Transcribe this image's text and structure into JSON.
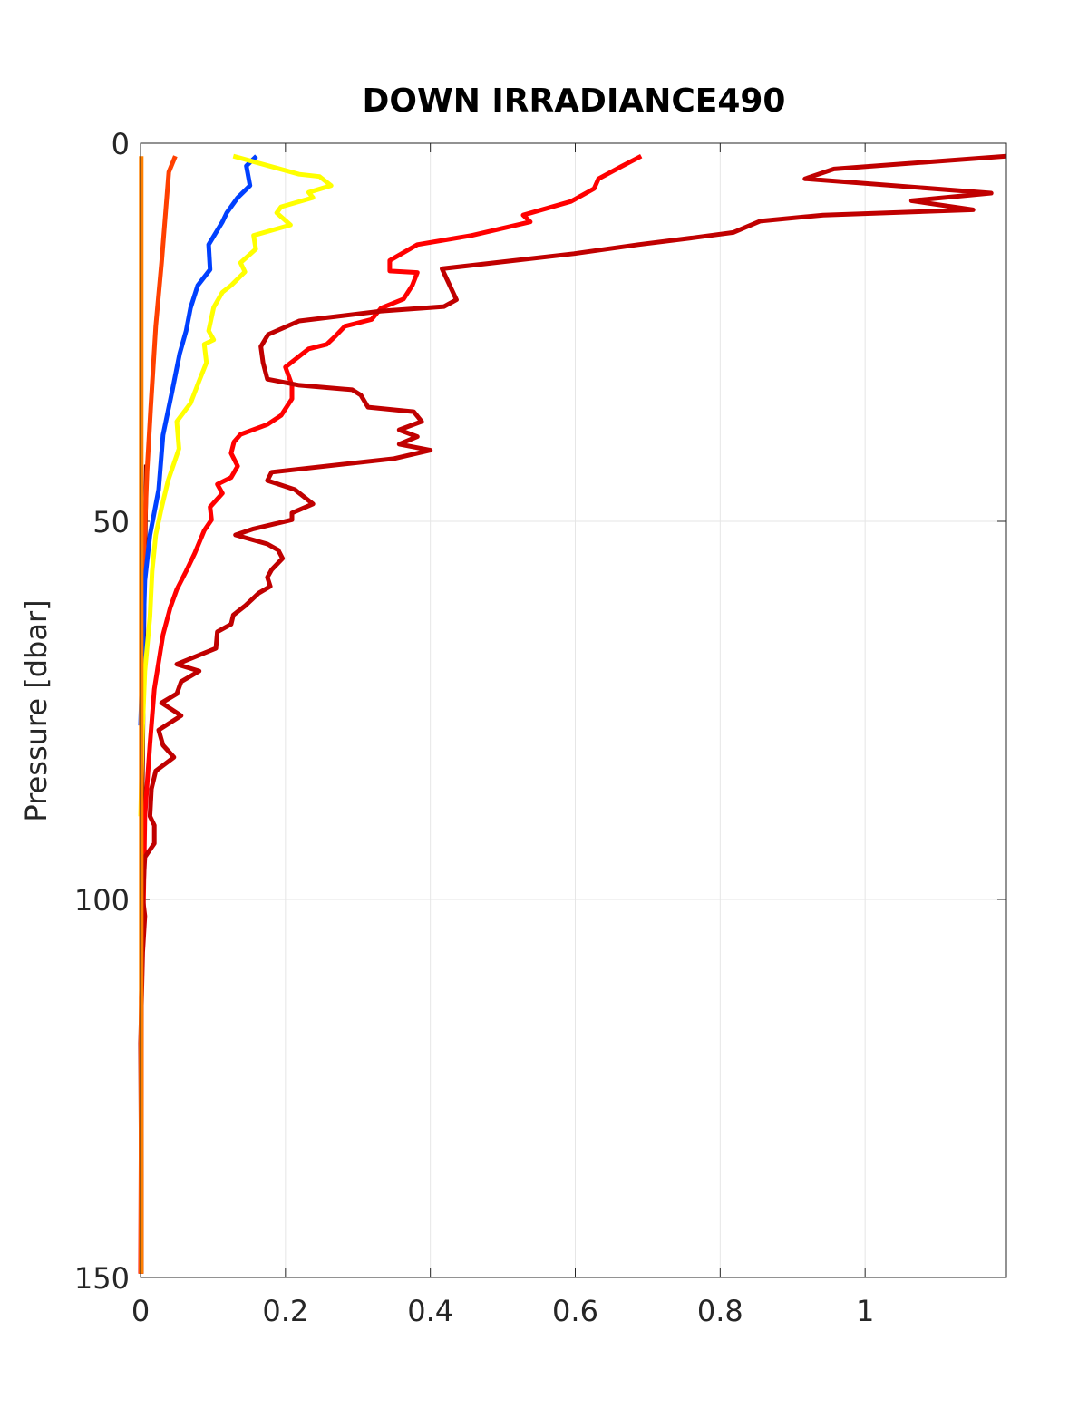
{
  "chart_data": {
    "type": "line",
    "title": "DOWN IRRADIANCE490",
    "ylabel": "Pressure [dbar]",
    "xlim": [
      0,
      1.195
    ],
    "xticks": [
      0,
      0.2,
      0.4,
      0.6,
      0.8,
      1
    ],
    "ylim": [
      0,
      150
    ],
    "yticks": [
      0,
      50,
      100,
      150
    ],
    "yreverse": true,
    "grid": true,
    "series": [
      {
        "color": "#800000",
        "x": [
          0.008,
          0.005,
          0.002,
          0.001,
          0.001
        ],
        "y": [
          42.5,
          60,
          90,
          120,
          149.5
        ]
      },
      {
        "color": "#ff4000",
        "x": [
          0.048,
          0.039,
          0.035,
          0.029,
          0.021,
          0.014,
          0.009,
          0.005,
          0.003,
          0.001
        ],
        "y": [
          1.7,
          3.8,
          8.6,
          15.8,
          24.2,
          35,
          43.4,
          53,
          65,
          77
        ]
      },
      {
        "color": "#0040ff",
        "x": [
          0.16,
          0.146,
          0.151,
          0.134,
          0.119,
          0.113,
          0.094,
          0.096,
          0.079,
          0.069,
          0.063,
          0.054,
          0.044,
          0.031,
          0.025,
          0.013,
          0.006,
          0.003,
          0
        ],
        "y": [
          1.7,
          3,
          5.6,
          7.2,
          9.2,
          10.4,
          13.4,
          16.7,
          18.8,
          21.8,
          24.8,
          27.8,
          32.6,
          38.6,
          45.8,
          51.8,
          57.8,
          67.4,
          77
        ]
      },
      {
        "color": "#ffff00",
        "x": [
          0.128,
          0.219,
          0.247,
          0.263,
          0.232,
          0.238,
          0.194,
          0.188,
          0.207,
          0.156,
          0.159,
          0.138,
          0.144,
          0.125,
          0.113,
          0.101,
          0.094,
          0.101,
          0.088,
          0.091,
          0.081,
          0.069,
          0.05,
          0.053,
          0.038,
          0.029,
          0.021,
          0.016,
          0.013,
          0.006,
          0.003,
          0
        ],
        "y": [
          1.7,
          4.1,
          4.4,
          5.6,
          6.5,
          7.2,
          8.4,
          9.2,
          10.8,
          12.2,
          14,
          15.8,
          17,
          18.8,
          19.7,
          21.7,
          24.8,
          26,
          26.6,
          29,
          31.4,
          34.4,
          36.8,
          40.4,
          44.6,
          48.2,
          51.8,
          56.6,
          62.6,
          69.8,
          77,
          89
        ]
      },
      {
        "color": "#ff0000",
        "x": [
          0.691,
          0.663,
          0.632,
          0.626,
          0.594,
          0.528,
          0.538,
          0.457,
          0.382,
          0.344,
          0.344,
          0.382,
          0.375,
          0.363,
          0.332,
          0.319,
          0.282,
          0.269,
          0.257,
          0.232,
          0.2,
          0.209,
          0.209,
          0.194,
          0.175,
          0.138,
          0.129,
          0.125,
          0.134,
          0.125,
          0.106,
          0.113,
          0.096,
          0.098,
          0.088,
          0.075,
          0.063,
          0.05,
          0.041,
          0.031,
          0.019,
          0.013,
          0.006,
          0.004,
          0.001,
          0.001,
          0
        ],
        "y": [
          1.7,
          3.1,
          4.7,
          6,
          7.7,
          9.5,
          10.4,
          12.2,
          13.4,
          15.5,
          16.9,
          17.1,
          18.8,
          20.6,
          21.8,
          23.3,
          24.2,
          25.5,
          26.6,
          27.2,
          29.6,
          32,
          33.8,
          36,
          37.2,
          38.5,
          39.5,
          41,
          42.7,
          44.2,
          45.1,
          46.3,
          48.1,
          49.8,
          51.2,
          54.2,
          56.6,
          59,
          61.4,
          65,
          72.2,
          79.4,
          89,
          101,
          113,
          125,
          149.5
        ]
      },
      {
        "color": "#c00000",
        "x": [
          1.195,
          0.957,
          0.917,
          1.174,
          1.064,
          1.149,
          0.942,
          0.855,
          0.818,
          0.762,
          0.687,
          0.598,
          0.416,
          0.436,
          0.419,
          0.332,
          0.219,
          0.176,
          0.166,
          0.169,
          0.175,
          0.219,
          0.292,
          0.304,
          0.314,
          0.377,
          0.388,
          0.357,
          0.382,
          0.357,
          0.4,
          0.35,
          0.181,
          0.175,
          0.213,
          0.238,
          0.209,
          0.209,
          0.156,
          0.131,
          0.175,
          0.19,
          0.196,
          0.181,
          0.175,
          0.179,
          0.163,
          0.144,
          0.128,
          0.125,
          0.106,
          0.104,
          0.05,
          0.081,
          0.056,
          0.05,
          0.029,
          0.056,
          0.025,
          0.031,
          0.046,
          0.021,
          0.015,
          0.013,
          0.019,
          0.019,
          0.006,
          0.003,
          0.006,
          0.003,
          0,
          0.001,
          0.001
        ],
        "y": [
          1.7,
          3.4,
          4.7,
          6.6,
          7.6,
          8.8,
          9.5,
          10.3,
          11.8,
          12.5,
          13.4,
          14.6,
          16.6,
          20.7,
          21.6,
          22.2,
          23.5,
          25.3,
          26.9,
          29,
          31.2,
          32,
          32.6,
          33.3,
          34.9,
          35.5,
          36.8,
          37.9,
          38.8,
          39.8,
          40.6,
          41.7,
          43.5,
          44.6,
          45.8,
          47.7,
          48.9,
          49.8,
          51,
          51.8,
          53,
          53.8,
          54.9,
          56.4,
          57.4,
          58.6,
          59.5,
          61.2,
          62.4,
          63.6,
          64.6,
          66.8,
          68.9,
          69.8,
          71.2,
          72.8,
          74,
          75.7,
          77.6,
          79.6,
          81.2,
          83,
          85.4,
          89,
          90.2,
          92.6,
          94.4,
          99.8,
          102.2,
          107,
          119,
          136.9,
          149.5
        ]
      },
      {
        "color": "#ff8000",
        "x": [
          0.001,
          0.001
        ],
        "y": [
          1.7,
          149.5
        ]
      }
    ]
  }
}
